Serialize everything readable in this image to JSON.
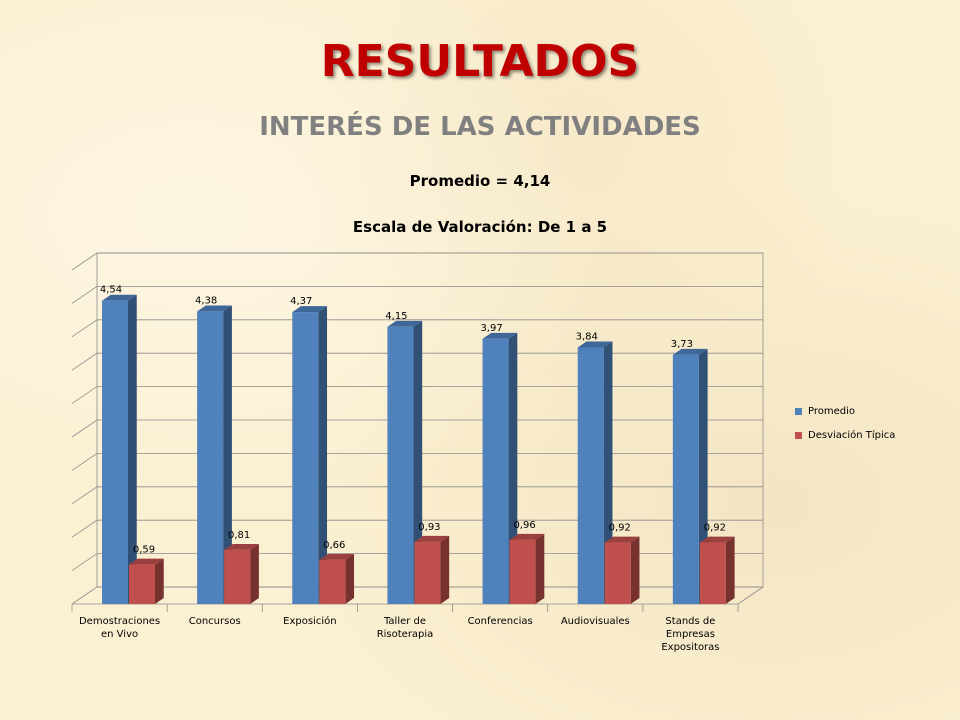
{
  "slide": {
    "title": "RESULTADOS",
    "subtitle": "INTERÉS DE LAS ACTIVIDADES",
    "line1": "Promedio = 4,14",
    "line2": "Escala de Valoración: De 1 a 5"
  },
  "colors": {
    "series_promedio": "#4f81bd",
    "series_desviacion": "#c0504d",
    "title": "#c00000"
  },
  "chart_data": {
    "type": "bar",
    "categories": [
      [
        "Demostraciones",
        "en Vivo"
      ],
      [
        "Concursos"
      ],
      [
        "Exposición"
      ],
      [
        "Taller de",
        "Risoterapia"
      ],
      [
        "Conferencias"
      ],
      [
        "Audiovisuales"
      ],
      [
        "Stands de",
        "Empresas",
        "Expositoras"
      ]
    ],
    "series": [
      {
        "name": "Promedio",
        "values": [
          4.54,
          4.38,
          4.37,
          4.15,
          3.97,
          3.84,
          3.73
        ],
        "labels": [
          "4,54",
          "4,38",
          "4,37",
          "4,15",
          "3,97",
          "3,84",
          "3,73"
        ]
      },
      {
        "name": "Desviación Típica",
        "values": [
          0.59,
          0.81,
          0.66,
          0.93,
          0.96,
          0.92,
          0.92
        ],
        "labels": [
          "0,59",
          "0,81",
          "0,66",
          "0,93",
          "0,96",
          "0,92",
          "0,92"
        ]
      }
    ],
    "ylim": [
      0,
      5
    ],
    "grid": true,
    "legend": "right",
    "style": "3d-column"
  }
}
